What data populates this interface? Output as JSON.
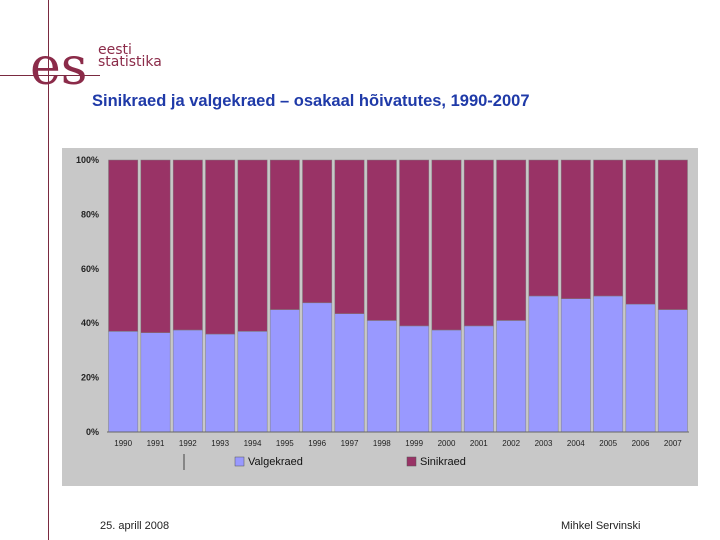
{
  "brand": {
    "mark": "es",
    "line1": "eesti",
    "line2": "statistika",
    "color": "#8b2b49"
  },
  "slide": {
    "title": "Sinikraed ja valgekraed – osakaal hõivatutes, 1990-2007",
    "title_color": "#1f3aa8"
  },
  "footer": {
    "date": "25. aprill 2008",
    "author": "Mihkel Servinski"
  },
  "chart_data": {
    "type": "bar",
    "stacked": true,
    "percent": true,
    "categories": [
      "1990",
      "1991",
      "1992",
      "1993",
      "1994",
      "1995",
      "1996",
      "1997",
      "1998",
      "1999",
      "2000",
      "2001",
      "2002",
      "2003",
      "2004",
      "2005",
      "2006",
      "2007"
    ],
    "series": [
      {
        "name": "Valgekraed",
        "color": "#9999ff",
        "values": [
          37,
          36.5,
          37.5,
          36,
          37,
          45,
          47.5,
          43.5,
          41,
          39,
          37.5,
          39,
          41,
          50,
          49,
          50,
          47,
          45
        ]
      },
      {
        "name": "Sinikraed",
        "color": "#993366",
        "values": [
          63,
          63.5,
          62.5,
          64,
          63,
          55,
          52.5,
          56.5,
          59,
          61,
          62.5,
          61,
          59,
          50,
          51,
          50,
          53,
          55
        ]
      }
    ],
    "yticks": [
      "0%",
      "20%",
      "40%",
      "60%",
      "80%",
      "100%"
    ],
    "ylim": [
      0,
      100
    ],
    "grid": false,
    "legend_position": "bottom"
  }
}
